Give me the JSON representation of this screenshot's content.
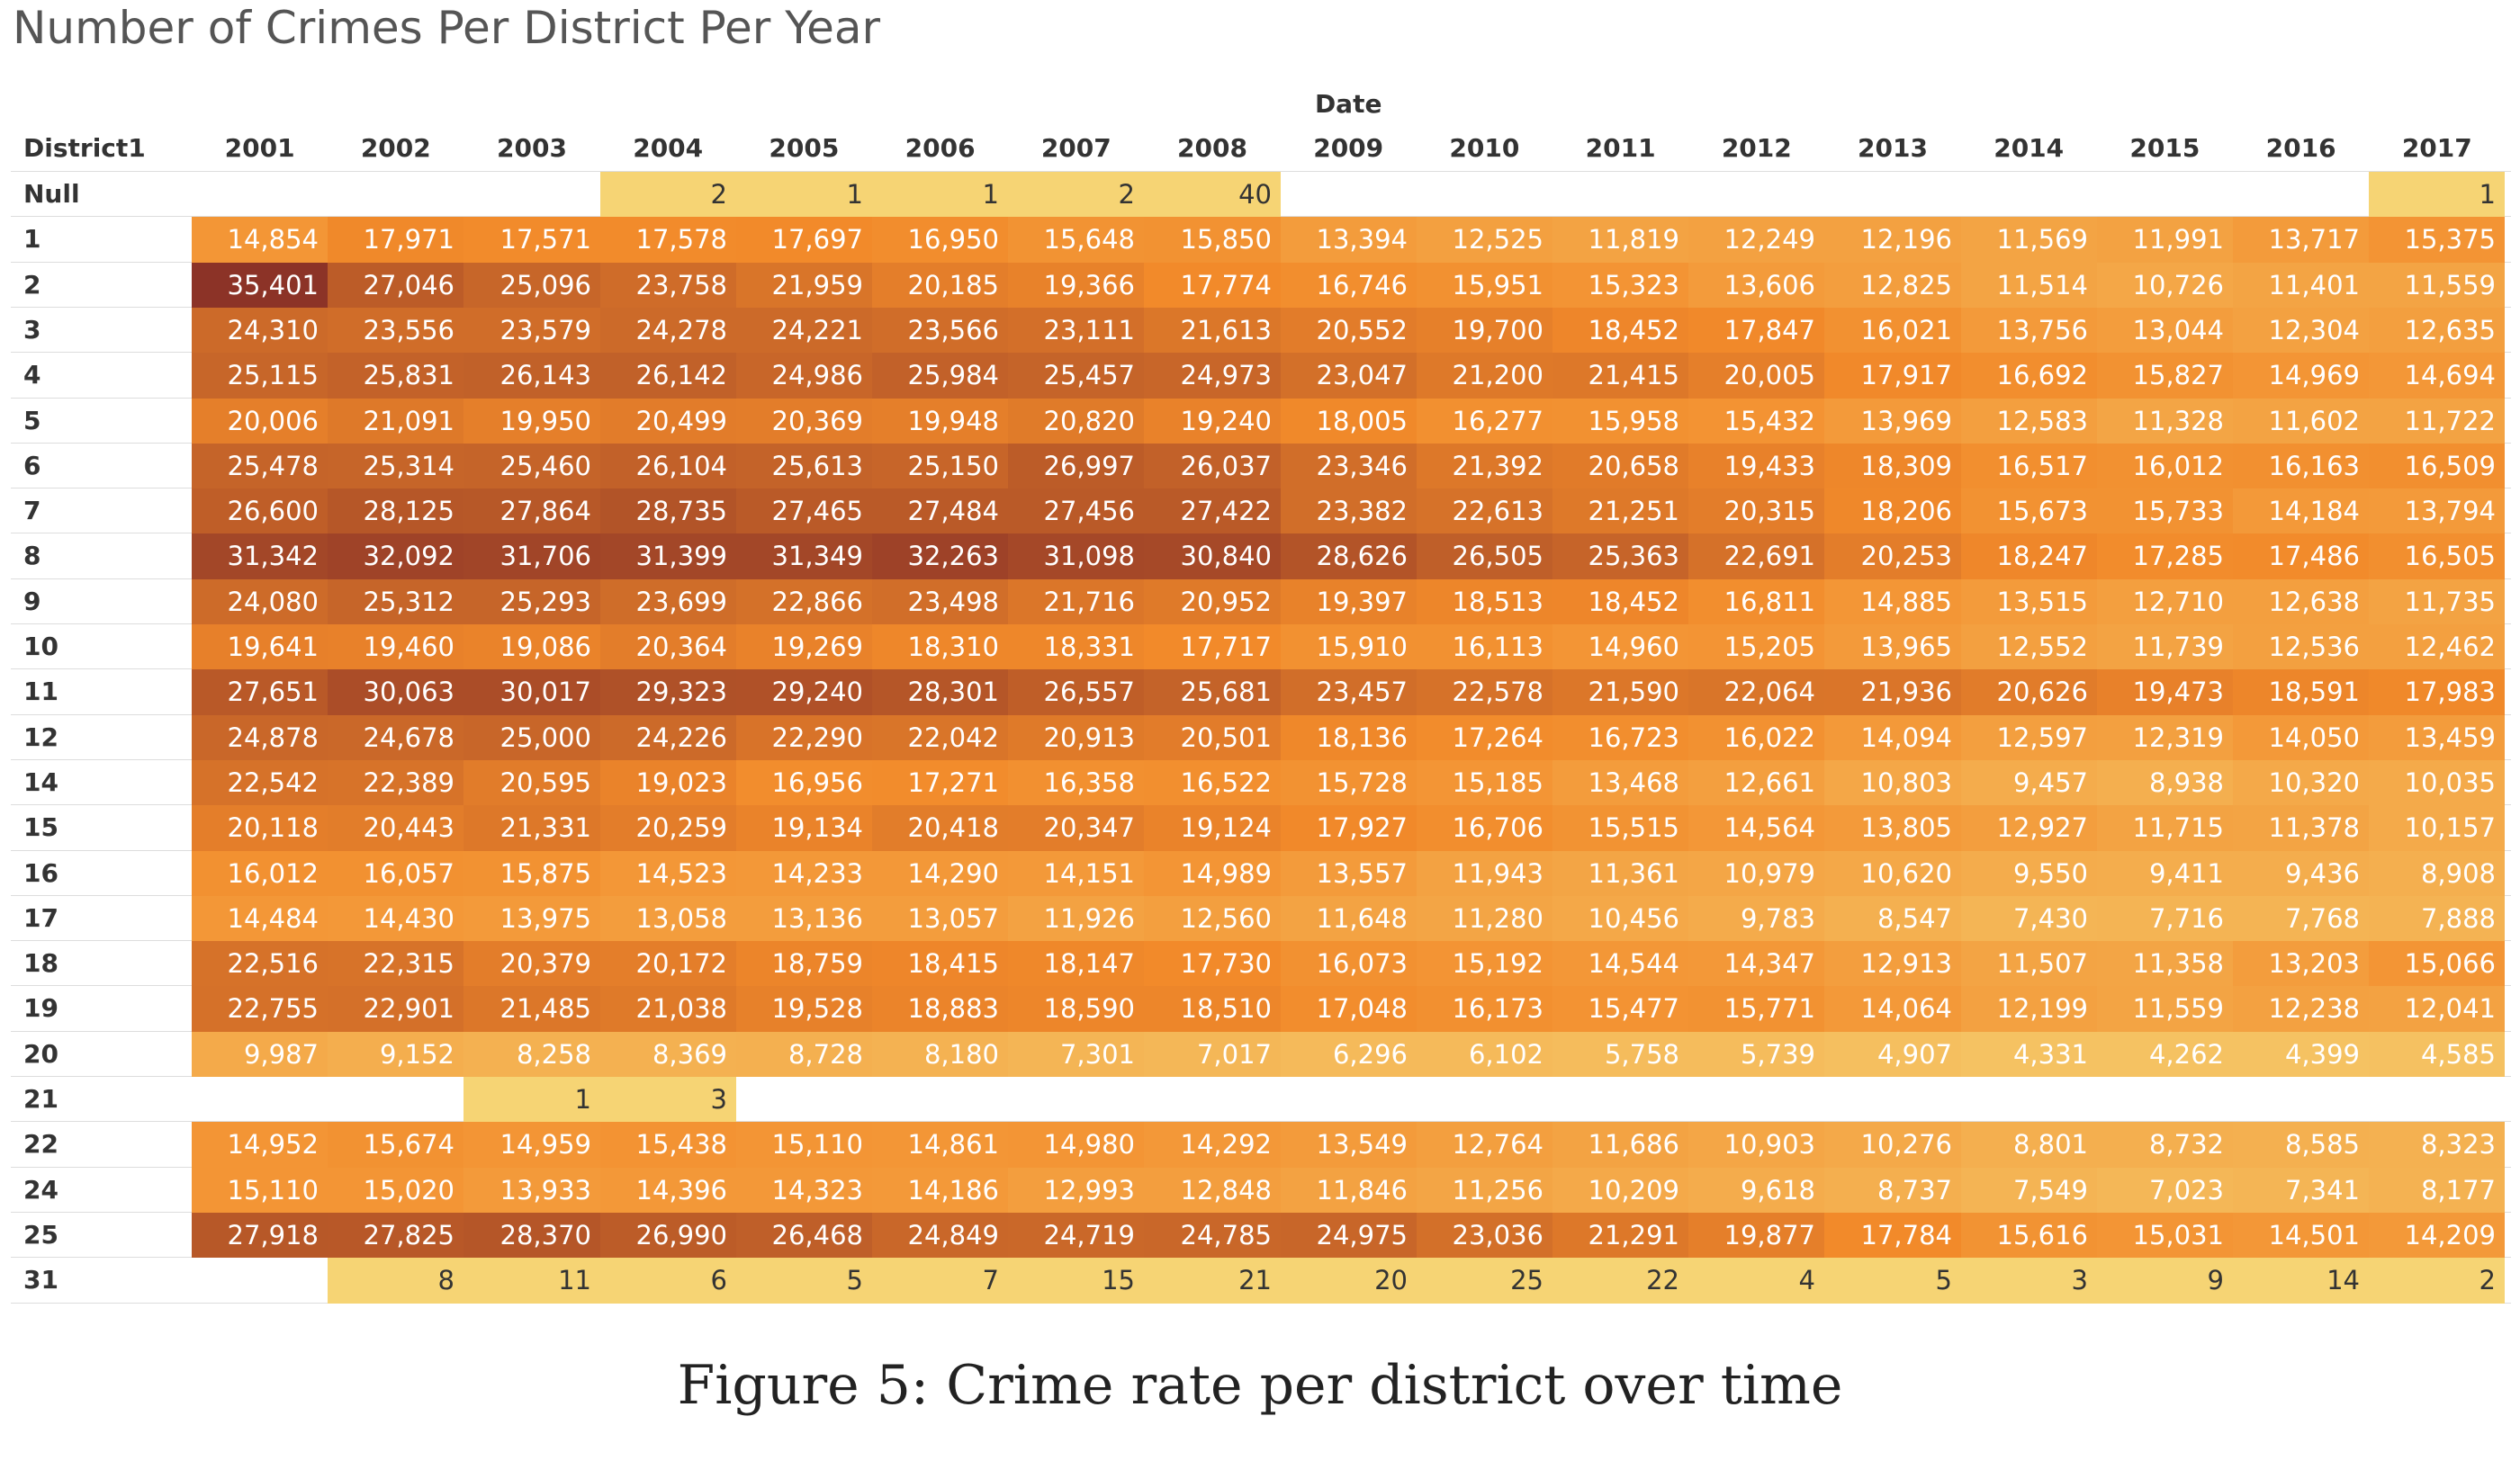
{
  "chart_data": {
    "type": "heatmap",
    "title": "Number of Crimes Per District Per Year",
    "column_group_label": "Date",
    "row_header": "District1",
    "years": [
      "2001",
      "2002",
      "2003",
      "2004",
      "2005",
      "2006",
      "2007",
      "2008",
      "2009",
      "2010",
      "2011",
      "2012",
      "2013",
      "2014",
      "2015",
      "2016",
      "2017"
    ],
    "rows": [
      {
        "district": "Null",
        "values": [
          null,
          null,
          null,
          2,
          1,
          1,
          2,
          40,
          null,
          null,
          null,
          null,
          null,
          null,
          null,
          null,
          1
        ]
      },
      {
        "district": "1",
        "values": [
          14854,
          17971,
          17571,
          17578,
          17697,
          16950,
          15648,
          15850,
          13394,
          12525,
          11819,
          12249,
          12196,
          11569,
          11991,
          13717,
          15375
        ]
      },
      {
        "district": "2",
        "values": [
          35401,
          27046,
          25096,
          23758,
          21959,
          20185,
          19366,
          17774,
          16746,
          15951,
          15323,
          13606,
          12825,
          11514,
          10726,
          11401,
          11559
        ]
      },
      {
        "district": "3",
        "values": [
          24310,
          23556,
          23579,
          24278,
          24221,
          23566,
          23111,
          21613,
          20552,
          19700,
          18452,
          17847,
          16021,
          13756,
          13044,
          12304,
          12635
        ]
      },
      {
        "district": "4",
        "values": [
          25115,
          25831,
          26143,
          26142,
          24986,
          25984,
          25457,
          24973,
          23047,
          21200,
          21415,
          20005,
          17917,
          16692,
          15827,
          14969,
          14694
        ]
      },
      {
        "district": "5",
        "values": [
          20006,
          21091,
          19950,
          20499,
          20369,
          19948,
          20820,
          19240,
          18005,
          16277,
          15958,
          15432,
          13969,
          12583,
          11328,
          11602,
          11722
        ]
      },
      {
        "district": "6",
        "values": [
          25478,
          25314,
          25460,
          26104,
          25613,
          25150,
          26997,
          26037,
          23346,
          21392,
          20658,
          19433,
          18309,
          16517,
          16012,
          16163,
          16509
        ]
      },
      {
        "district": "7",
        "values": [
          26600,
          28125,
          27864,
          28735,
          27465,
          27484,
          27456,
          27422,
          23382,
          22613,
          21251,
          20315,
          18206,
          15673,
          15733,
          14184,
          13794
        ]
      },
      {
        "district": "8",
        "values": [
          31342,
          32092,
          31706,
          31399,
          31349,
          32263,
          31098,
          30840,
          28626,
          26505,
          25363,
          22691,
          20253,
          18247,
          17285,
          17486,
          16505
        ]
      },
      {
        "district": "9",
        "values": [
          24080,
          25312,
          25293,
          23699,
          22866,
          23498,
          21716,
          20952,
          19397,
          18513,
          18452,
          16811,
          14885,
          13515,
          12710,
          12638,
          11735
        ]
      },
      {
        "district": "10",
        "values": [
          19641,
          19460,
          19086,
          20364,
          19269,
          18310,
          18331,
          17717,
          15910,
          16113,
          14960,
          15205,
          13965,
          12552,
          11739,
          12536,
          12462
        ]
      },
      {
        "district": "11",
        "values": [
          27651,
          30063,
          30017,
          29323,
          29240,
          28301,
          26557,
          25681,
          23457,
          22578,
          21590,
          22064,
          21936,
          20626,
          19473,
          18591,
          17983
        ]
      },
      {
        "district": "12",
        "values": [
          24878,
          24678,
          25000,
          24226,
          22290,
          22042,
          20913,
          20501,
          18136,
          17264,
          16723,
          16022,
          14094,
          12597,
          12319,
          14050,
          13459
        ]
      },
      {
        "district": "14",
        "values": [
          22542,
          22389,
          20595,
          19023,
          16956,
          17271,
          16358,
          16522,
          15728,
          15185,
          13468,
          12661,
          10803,
          9457,
          8938,
          10320,
          10035
        ]
      },
      {
        "district": "15",
        "values": [
          20118,
          20443,
          21331,
          20259,
          19134,
          20418,
          20347,
          19124,
          17927,
          16706,
          15515,
          14564,
          13805,
          12927,
          11715,
          11378,
          10157
        ]
      },
      {
        "district": "16",
        "values": [
          16012,
          16057,
          15875,
          14523,
          14233,
          14290,
          14151,
          14989,
          13557,
          11943,
          11361,
          10979,
          10620,
          9550,
          9411,
          9436,
          8908
        ]
      },
      {
        "district": "17",
        "values": [
          14484,
          14430,
          13975,
          13058,
          13136,
          13057,
          11926,
          12560,
          11648,
          11280,
          10456,
          9783,
          8547,
          7430,
          7716,
          7768,
          7888
        ]
      },
      {
        "district": "18",
        "values": [
          22516,
          22315,
          20379,
          20172,
          18759,
          18415,
          18147,
          17730,
          16073,
          15192,
          14544,
          14347,
          12913,
          11507,
          11358,
          13203,
          15066
        ]
      },
      {
        "district": "19",
        "values": [
          22755,
          22901,
          21485,
          21038,
          19528,
          18883,
          18590,
          18510,
          17048,
          16173,
          15477,
          15771,
          14064,
          12199,
          11559,
          12238,
          12041
        ]
      },
      {
        "district": "20",
        "values": [
          9987,
          9152,
          8258,
          8369,
          8728,
          8180,
          7301,
          7017,
          6296,
          6102,
          5758,
          5739,
          4907,
          4331,
          4262,
          4399,
          4585
        ]
      },
      {
        "district": "21",
        "values": [
          null,
          null,
          1,
          3,
          null,
          null,
          null,
          null,
          null,
          null,
          null,
          null,
          null,
          null,
          null,
          null,
          null
        ]
      },
      {
        "district": "22",
        "values": [
          14952,
          15674,
          14959,
          15438,
          15110,
          14861,
          14980,
          14292,
          13549,
          12764,
          11686,
          10903,
          10276,
          8801,
          8732,
          8585,
          8323
        ]
      },
      {
        "district": "24",
        "values": [
          15110,
          15020,
          13933,
          14396,
          14323,
          14186,
          12993,
          12848,
          11846,
          11256,
          10209,
          9618,
          8737,
          7549,
          7023,
          7341,
          8177
        ]
      },
      {
        "district": "25",
        "values": [
          27918,
          27825,
          28370,
          26990,
          26468,
          24849,
          24719,
          24785,
          24975,
          23036,
          21291,
          19877,
          17784,
          15616,
          15031,
          14501,
          14209
        ]
      },
      {
        "district": "31",
        "values": [
          null,
          8,
          11,
          6,
          5,
          7,
          15,
          21,
          20,
          25,
          22,
          4,
          5,
          3,
          9,
          14,
          2
        ]
      }
    ],
    "color_scale": {
      "low": "#f6d474",
      "mid": "#f28a2a",
      "high": "#8c3327"
    }
  },
  "caption": "Figure 5: Crime rate per district over time"
}
